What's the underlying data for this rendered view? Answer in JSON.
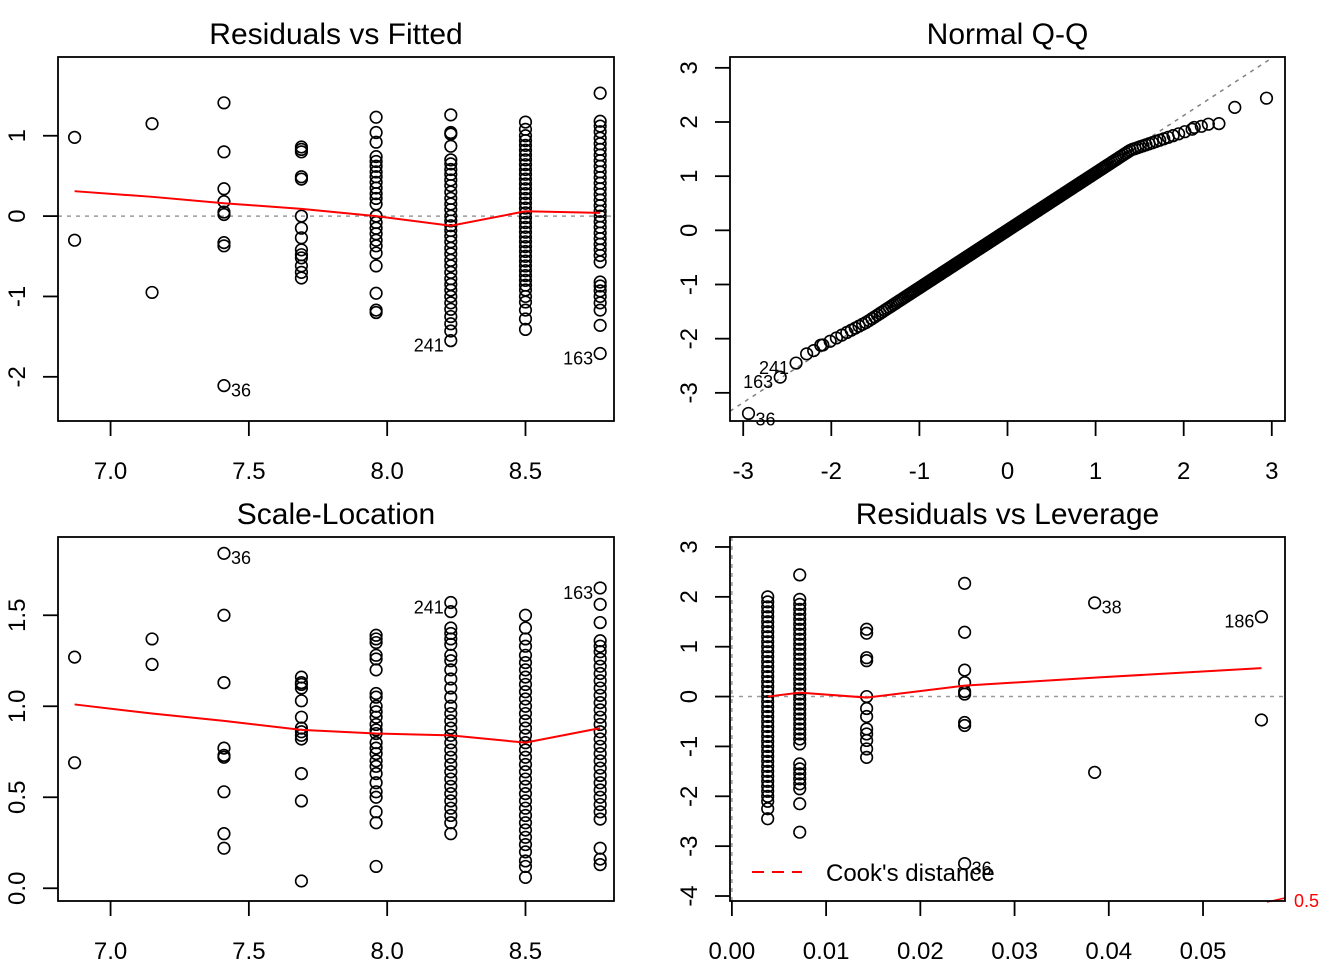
{
  "chart_data": [
    {
      "id": "residuals-vs-fitted",
      "type": "scatter",
      "title": "Residuals vs Fitted",
      "xlabel": "",
      "ylabel": "",
      "xlim": [
        6.81,
        8.82
      ],
      "ylim": [
        -2.55,
        1.98
      ],
      "xticks": [
        7.0,
        7.5,
        8.0,
        8.5
      ],
      "xtick_labels": [
        "7.0",
        "7.5",
        "8.0",
        "8.5"
      ],
      "yticks": [
        -2,
        -1,
        0,
        1
      ],
      "ytick_labels": [
        "-2",
        "-1",
        "0",
        "1"
      ],
      "reference_line": {
        "orientation": "horizontal",
        "value": 0,
        "style": "dotted",
        "color": "#999999"
      },
      "smooth_line": {
        "color": "#ff0000",
        "x": [
          6.87,
          7.15,
          7.41,
          7.69,
          7.96,
          8.23,
          8.5,
          8.77
        ],
        "y": [
          0.31,
          0.24,
          0.16,
          0.09,
          0.0,
          -0.12,
          0.06,
          0.04
        ]
      },
      "groups": [
        {
          "x": 6.87,
          "y": [
            0.98,
            -0.3
          ]
        },
        {
          "x": 7.15,
          "y": [
            1.15,
            -0.95
          ]
        },
        {
          "x": 7.41,
          "y": [
            1.41,
            0.8,
            0.34,
            0.18,
            0.05,
            0.02,
            -0.33,
            -0.37,
            -2.11
          ]
        },
        {
          "x": 7.69,
          "y": [
            0.86,
            0.83,
            0.8,
            0.49,
            0.46,
            0.0,
            -0.15,
            -0.27,
            -0.42,
            -0.48,
            -0.52,
            -0.62,
            -0.7,
            -0.77
          ]
        },
        {
          "x": 7.96,
          "y": [
            1.23,
            1.04,
            0.92,
            0.74,
            0.68,
            0.62,
            0.55,
            0.49,
            0.42,
            0.35,
            0.28,
            0.22,
            0.15,
            0.0,
            -0.08,
            -0.15,
            -0.22,
            -0.3,
            -0.37,
            -0.46,
            -0.62,
            -0.96,
            -1.17,
            -1.2
          ]
        },
        {
          "x": 8.23,
          "y": [
            1.26,
            1.04,
            1.02,
            0.87,
            0.7,
            0.65,
            0.58,
            0.52,
            0.45,
            0.38,
            0.3,
            0.22,
            0.15,
            0.08,
            0.0,
            -0.06,
            -0.12,
            -0.18,
            -0.25,
            -0.32,
            -0.4,
            -0.47,
            -0.55,
            -0.62,
            -0.7,
            -0.78,
            -0.85,
            -0.92,
            -1.0,
            -1.08,
            -1.16,
            -1.25,
            -1.34,
            -1.43,
            -1.55
          ]
        },
        {
          "x": 8.5,
          "y": [
            1.17,
            1.08,
            1.0,
            0.94,
            0.88,
            0.82,
            0.76,
            0.7,
            0.64,
            0.58,
            0.52,
            0.46,
            0.4,
            0.34,
            0.28,
            0.22,
            0.16,
            0.1,
            0.04,
            -0.02,
            -0.08,
            -0.14,
            -0.2,
            -0.26,
            -0.32,
            -0.38,
            -0.44,
            -0.5,
            -0.56,
            -0.62,
            -0.68,
            -0.74,
            -0.8,
            -0.86,
            -0.92,
            -1.0,
            -1.07,
            -1.17,
            -1.28,
            -1.41
          ]
        },
        {
          "x": 8.77,
          "y": [
            1.53,
            1.18,
            1.12,
            1.05,
            0.97,
            0.9,
            0.83,
            0.76,
            0.69,
            0.62,
            0.55,
            0.48,
            0.41,
            0.34,
            0.27,
            0.2,
            0.13,
            0.06,
            0.0,
            -0.07,
            -0.14,
            -0.21,
            -0.28,
            -0.35,
            -0.42,
            -0.49,
            -0.57,
            -0.82,
            -0.87,
            -0.93,
            -1.0,
            -1.08,
            -1.17,
            -1.36,
            -1.71
          ]
        }
      ],
      "annotations": [
        {
          "label": "36",
          "x": 7.41,
          "y": -2.11,
          "side": "right"
        },
        {
          "label": "241",
          "x": 8.23,
          "y": -1.55,
          "side": "left"
        },
        {
          "label": "163",
          "x": 8.77,
          "y": -1.71,
          "side": "left"
        }
      ]
    },
    {
      "id": "normal-qq",
      "type": "scatter",
      "title": "Normal Q-Q",
      "xlabel": "",
      "ylabel": "",
      "xlim": [
        -3.15,
        3.15
      ],
      "ylim": [
        -3.52,
        3.2
      ],
      "xticks": [
        -3,
        -2,
        -1,
        0,
        1,
        2,
        3
      ],
      "xtick_labels": [
        "-3",
        "-2",
        "-1",
        "0",
        "1",
        "2",
        "3"
      ],
      "yticks": [
        -3,
        -2,
        -1,
        0,
        1,
        2,
        3
      ],
      "ytick_labels": [
        "-3",
        "-2",
        "-1",
        "0",
        "1",
        "2",
        "3"
      ],
      "reference_line": {
        "slope": 1.06,
        "intercept": 0.0,
        "style": "dashed",
        "color": "#808080"
      },
      "n_points": 250,
      "tail_points": [
        {
          "x": -2.94,
          "y": -3.38
        },
        {
          "x": -2.58,
          "y": -2.71
        },
        {
          "x": -2.4,
          "y": -2.45
        },
        {
          "x": -2.28,
          "y": -2.28
        },
        {
          "x": -2.2,
          "y": -2.22
        },
        {
          "x": -2.12,
          "y": -2.12
        },
        {
          "x": 2.12,
          "y": 1.9
        },
        {
          "x": 2.2,
          "y": 1.92
        },
        {
          "x": 2.28,
          "y": 1.96
        },
        {
          "x": 2.4,
          "y": 1.97
        },
        {
          "x": 2.58,
          "y": 2.27
        },
        {
          "x": 2.94,
          "y": 2.44
        }
      ],
      "annotations": [
        {
          "label": "36",
          "x": -2.94,
          "y": -3.38,
          "side": "right"
        },
        {
          "label": "163",
          "x": -2.58,
          "y": -2.71,
          "side": "left"
        },
        {
          "label": "241",
          "x": -2.4,
          "y": -2.45,
          "side": "left"
        }
      ]
    },
    {
      "id": "scale-location",
      "type": "scatter",
      "title": "Scale-Location",
      "xlabel": "",
      "ylabel": "",
      "xlim": [
        6.81,
        8.82
      ],
      "ylim": [
        -0.07,
        1.93
      ],
      "xticks": [
        7.0,
        7.5,
        8.0,
        8.5
      ],
      "xtick_labels": [
        "7.0",
        "7.5",
        "8.0",
        "8.5"
      ],
      "yticks": [
        0.0,
        0.5,
        1.0,
        1.5
      ],
      "ytick_labels": [
        "0.0",
        "0.5",
        "1.0",
        "1.5"
      ],
      "smooth_line": {
        "color": "#ff0000",
        "x": [
          6.87,
          7.15,
          7.41,
          7.69,
          7.96,
          8.23,
          8.5,
          8.77
        ],
        "y": [
          1.01,
          0.96,
          0.92,
          0.87,
          0.85,
          0.84,
          0.8,
          0.88
        ]
      },
      "groups": [
        {
          "x": 6.87,
          "y": [
            1.27,
            0.69
          ]
        },
        {
          "x": 7.15,
          "y": [
            1.37,
            1.23
          ]
        },
        {
          "x": 7.41,
          "y": [
            1.84,
            1.5,
            1.13,
            0.77,
            0.73,
            0.72,
            0.53,
            0.3,
            0.22
          ]
        },
        {
          "x": 7.69,
          "y": [
            1.16,
            1.13,
            1.12,
            1.1,
            1.03,
            0.94,
            0.88,
            0.86,
            0.84,
            0.82,
            0.63,
            0.48,
            0.04
          ]
        },
        {
          "x": 7.96,
          "y": [
            1.39,
            1.37,
            1.35,
            1.28,
            1.26,
            1.2,
            1.07,
            1.05,
            1.0,
            0.97,
            0.94,
            0.9,
            0.87,
            0.85,
            0.8,
            0.77,
            0.74,
            0.7,
            0.67,
            0.63,
            0.58,
            0.53,
            0.5,
            0.42,
            0.36,
            0.12
          ]
        },
        {
          "x": 8.23,
          "y": [
            1.57,
            1.52,
            1.43,
            1.4,
            1.37,
            1.34,
            1.28,
            1.25,
            1.2,
            1.15,
            1.1,
            1.05,
            1.0,
            0.96,
            0.92,
            0.88,
            0.84,
            0.8,
            0.76,
            0.72,
            0.68,
            0.64,
            0.6,
            0.56,
            0.52,
            0.48,
            0.44,
            0.4,
            0.36,
            0.3
          ]
        },
        {
          "x": 8.5,
          "y": [
            1.5,
            1.43,
            1.37,
            1.33,
            1.28,
            1.24,
            1.2,
            1.16,
            1.12,
            1.08,
            1.04,
            1.0,
            0.96,
            0.92,
            0.88,
            0.84,
            0.8,
            0.76,
            0.72,
            0.68,
            0.64,
            0.6,
            0.56,
            0.52,
            0.48,
            0.44,
            0.4,
            0.36,
            0.32,
            0.28,
            0.24,
            0.2,
            0.15,
            0.12,
            0.06
          ]
        },
        {
          "x": 8.77,
          "y": [
            1.65,
            1.56,
            1.46,
            1.36,
            1.33,
            1.3,
            1.26,
            1.22,
            1.18,
            1.14,
            1.1,
            1.06,
            1.02,
            0.98,
            0.94,
            0.9,
            0.86,
            0.82,
            0.78,
            0.74,
            0.7,
            0.66,
            0.62,
            0.58,
            0.54,
            0.5,
            0.46,
            0.42,
            0.38,
            0.22,
            0.16,
            0.13
          ]
        }
      ],
      "annotations": [
        {
          "label": "36",
          "x": 7.41,
          "y": 1.84,
          "side": "right"
        },
        {
          "label": "241",
          "x": 8.23,
          "y": 1.57,
          "side": "left"
        },
        {
          "label": "163",
          "x": 8.77,
          "y": 1.65,
          "side": "left"
        }
      ]
    },
    {
      "id": "residuals-vs-leverage",
      "type": "scatter",
      "title": "Residuals vs Leverage",
      "xlabel": "",
      "ylabel": "",
      "xlim": [
        -0.0002,
        0.0587
      ],
      "ylim": [
        -4.1,
        3.2
      ],
      "xticks": [
        0.0,
        0.01,
        0.02,
        0.03,
        0.04,
        0.05
      ],
      "xtick_labels": [
        "0.00",
        "0.01",
        "0.02",
        "0.03",
        "0.04",
        "0.05"
      ],
      "yticks": [
        -4,
        -3,
        -2,
        -1,
        0,
        1,
        2,
        3
      ],
      "ytick_labels": [
        "-4",
        "-3",
        "-2",
        "-1",
        "0",
        "1",
        "2",
        "3"
      ],
      "reference_lines": [
        {
          "orientation": "horizontal",
          "value": 0,
          "style": "dotted",
          "color": "#999999"
        },
        {
          "orientation": "vertical",
          "value": 0,
          "style": "dotted",
          "color": "#999999"
        }
      ],
      "smooth_line": {
        "color": "#ff0000",
        "x": [
          0.0038,
          0.0072,
          0.0143,
          0.0247,
          0.0385,
          0.0562
        ],
        "y": [
          0.0,
          0.08,
          -0.02,
          0.22,
          0.38,
          0.57
        ]
      },
      "groups": [
        {
          "x": 0.0038,
          "y": [
            2.0,
            1.9,
            1.8,
            1.7,
            1.6,
            1.5,
            1.4,
            1.3,
            1.2,
            1.1,
            1.0,
            0.9,
            0.8,
            0.7,
            0.6,
            0.5,
            0.4,
            0.3,
            0.2,
            0.1,
            0.0,
            -0.1,
            -0.2,
            -0.3,
            -0.4,
            -0.5,
            -0.6,
            -0.7,
            -0.8,
            -0.9,
            -1.0,
            -1.1,
            -1.2,
            -1.3,
            -1.4,
            -1.5,
            -1.6,
            -1.7,
            -1.8,
            -1.9,
            -2.0,
            -2.1,
            -2.25,
            -2.45
          ]
        },
        {
          "x": 0.0072,
          "y": [
            2.44,
            1.95,
            1.85,
            1.75,
            1.65,
            1.55,
            1.45,
            1.35,
            1.25,
            1.15,
            1.05,
            0.95,
            0.85,
            0.75,
            0.65,
            0.55,
            0.45,
            0.35,
            0.25,
            0.15,
            0.05,
            -0.05,
            -0.15,
            -0.25,
            -0.35,
            -0.45,
            -0.55,
            -0.65,
            -0.75,
            -0.85,
            -0.95,
            -1.35,
            -1.45,
            -1.55,
            -1.65,
            -1.75,
            -1.85,
            -2.15,
            -2.72
          ]
        },
        {
          "x": 0.0143,
          "y": [
            1.35,
            1.27,
            0.78,
            0.72,
            0.0,
            -0.24,
            -0.4,
            -0.65,
            -0.75,
            -0.88,
            -1.05,
            -1.22
          ]
        },
        {
          "x": 0.0247,
          "y": [
            2.27,
            1.29,
            0.53,
            0.28,
            0.1,
            0.05,
            -0.52,
            -0.58,
            -3.35
          ]
        },
        {
          "x": 0.0385,
          "y": [
            1.88,
            -1.52
          ]
        },
        {
          "x": 0.0562,
          "y": [
            1.6,
            -0.47
          ]
        }
      ],
      "annotations": [
        {
          "label": "38",
          "x": 0.0385,
          "y": 1.88,
          "side": "right"
        },
        {
          "label": "186",
          "x": 0.0562,
          "y": 1.6,
          "side": "left"
        },
        {
          "label": "36",
          "x": 0.0247,
          "y": -3.35,
          "side": "right"
        }
      ],
      "legend": {
        "position": "bottom-left",
        "entries": [
          {
            "label": "Cook's distance",
            "style": "dashed",
            "color": "#ff0000"
          }
        ]
      },
      "cooks_contour": {
        "level": "0.5",
        "color": "#ff0000"
      }
    }
  ]
}
